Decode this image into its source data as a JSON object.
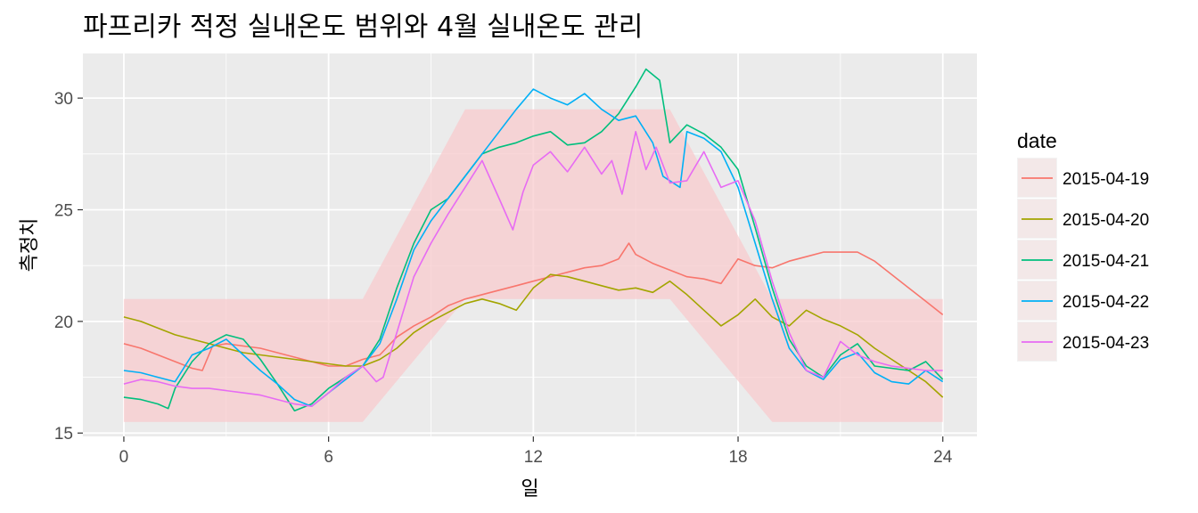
{
  "chart_data": {
    "type": "line",
    "title": "파프리카 적정 실내온도 범위와 4월 실내온도 관리",
    "xlabel": "일",
    "ylabel": "측정치",
    "xlim": [
      -1.2,
      25
    ],
    "ylim": [
      14.85,
      32
    ],
    "x_ticks": [
      0,
      6,
      12,
      18,
      24
    ],
    "y_ticks": [
      15,
      20,
      25,
      30
    ],
    "grid": true,
    "legend": {
      "title": "date",
      "position": "right"
    },
    "band": {
      "color": "#F8CBCD",
      "x": [
        0,
        7,
        10,
        16,
        19,
        24
      ],
      "upper": [
        21,
        21,
        29.5,
        29.5,
        21,
        21
      ],
      "lower": [
        15.5,
        15.5,
        21,
        21,
        15.5,
        15.5
      ]
    },
    "series": [
      {
        "name": "2015-04-19",
        "color": "#F8766D",
        "x": [
          0,
          0.5,
          1,
          1.5,
          2,
          2.3,
          2.6,
          3,
          3.5,
          4,
          4.5,
          5,
          5.5,
          6,
          6.5,
          7,
          7.5,
          8,
          8.5,
          9,
          9.5,
          10,
          10.5,
          11,
          11.5,
          12,
          12.5,
          13,
          13.5,
          14,
          14.5,
          14.8,
          15,
          15.5,
          16,
          16.5,
          17,
          17.5,
          18,
          18.5,
          19,
          19.5,
          20,
          20.5,
          21,
          21.5,
          22,
          22.5,
          23,
          23.5,
          24
        ],
        "values": [
          19.0,
          18.8,
          18.5,
          18.2,
          17.9,
          17.8,
          18.9,
          19.0,
          18.9,
          18.8,
          18.6,
          18.4,
          18.2,
          18.0,
          18.0,
          18.3,
          18.5,
          19.3,
          19.8,
          20.2,
          20.7,
          21.0,
          21.2,
          21.4,
          21.6,
          21.8,
          22.0,
          22.2,
          22.4,
          22.5,
          22.8,
          23.5,
          23.0,
          22.6,
          22.3,
          22.0,
          21.9,
          21.7,
          22.8,
          22.5,
          22.4,
          22.7,
          22.9,
          23.1,
          23.1,
          23.1,
          22.7,
          22.1,
          21.5,
          20.9,
          20.3
        ]
      },
      {
        "name": "2015-04-20",
        "color": "#A3A500",
        "x": [
          0,
          0.5,
          1,
          1.5,
          2,
          2.5,
          3,
          3.5,
          4,
          4.5,
          5,
          5.5,
          6,
          6.5,
          7,
          7.5,
          8,
          8.5,
          9,
          9.5,
          10,
          10.5,
          11,
          11.5,
          12,
          12.5,
          13,
          13.5,
          14,
          14.5,
          15,
          15.5,
          16,
          16.5,
          17,
          17.5,
          18,
          18.5,
          19,
          19.5,
          20,
          20.5,
          21,
          21.5,
          22,
          22.5,
          23,
          23.5,
          24
        ],
        "values": [
          20.2,
          20.0,
          19.7,
          19.4,
          19.2,
          19.0,
          18.8,
          18.6,
          18.5,
          18.4,
          18.3,
          18.2,
          18.1,
          18.0,
          18.0,
          18.3,
          18.8,
          19.5,
          20.0,
          20.4,
          20.8,
          21.0,
          20.8,
          20.5,
          21.5,
          22.1,
          22.0,
          21.8,
          21.6,
          21.4,
          21.5,
          21.3,
          21.8,
          21.2,
          20.5,
          19.8,
          20.3,
          21.0,
          20.2,
          19.8,
          20.5,
          20.1,
          19.8,
          19.4,
          18.8,
          18.3,
          17.8,
          17.3,
          16.6
        ]
      },
      {
        "name": "2015-04-21",
        "color": "#00BF7D",
        "x": [
          0,
          0.5,
          1,
          1.3,
          1.5,
          2,
          2.5,
          3,
          3.5,
          4,
          4.5,
          5,
          5.5,
          6,
          6.5,
          7,
          7.5,
          8,
          8.5,
          9,
          9.5,
          10,
          10.5,
          11,
          11.5,
          12,
          12.5,
          13,
          13.5,
          14,
          14.5,
          15,
          15.3,
          15.7,
          16,
          16.5,
          17,
          17.5,
          18,
          18.5,
          19,
          19.5,
          20,
          20.5,
          21,
          21.5,
          22,
          22.5,
          23,
          23.5,
          24
        ],
        "values": [
          16.6,
          16.5,
          16.3,
          16.1,
          17.0,
          18.2,
          19.0,
          19.4,
          19.2,
          18.3,
          17.2,
          16.0,
          16.3,
          17.0,
          17.5,
          18.0,
          19.2,
          21.5,
          23.5,
          25.0,
          25.5,
          26.5,
          27.5,
          27.8,
          28.0,
          28.3,
          28.5,
          27.9,
          28.0,
          28.5,
          29.3,
          30.5,
          31.3,
          30.8,
          28.0,
          28.8,
          28.4,
          27.8,
          26.8,
          24.2,
          21.5,
          19.2,
          18.0,
          17.5,
          18.5,
          19.0,
          18.0,
          17.9,
          17.8,
          18.2,
          17.4
        ]
      },
      {
        "name": "2015-04-22",
        "color": "#00B0F6",
        "x": [
          0,
          0.5,
          1,
          1.5,
          2,
          2.5,
          3,
          3.5,
          4,
          4.5,
          5,
          5.5,
          6,
          6.5,
          7,
          7.5,
          8,
          8.5,
          9,
          9.5,
          10,
          10.5,
          11,
          11.5,
          12,
          12.5,
          13,
          13.5,
          14,
          14.5,
          15,
          15.5,
          15.8,
          16.3,
          16.5,
          17,
          17.5,
          18,
          18.5,
          19,
          19.5,
          20,
          20.5,
          21,
          21.5,
          22,
          22.5,
          23,
          23.5,
          24
        ],
        "values": [
          17.8,
          17.7,
          17.5,
          17.3,
          18.5,
          18.8,
          19.2,
          18.5,
          17.8,
          17.2,
          16.5,
          16.2,
          16.8,
          17.4,
          18.0,
          19.0,
          21.0,
          23.2,
          24.5,
          25.5,
          26.5,
          27.5,
          28.5,
          29.5,
          30.4,
          30.0,
          29.7,
          30.2,
          29.5,
          29.0,
          29.2,
          28.0,
          26.5,
          26.0,
          28.5,
          28.2,
          27.6,
          26.0,
          23.5,
          21.0,
          18.8,
          17.8,
          17.4,
          18.3,
          18.6,
          17.7,
          17.3,
          17.2,
          17.8,
          17.3
        ]
      },
      {
        "name": "2015-04-23",
        "color": "#E76BF3",
        "x": [
          0,
          0.5,
          1,
          1.5,
          2,
          2.5,
          3,
          3.5,
          4,
          4.5,
          5,
          5.5,
          6,
          6.5,
          7,
          7.4,
          7.6,
          8,
          8.5,
          9,
          9.5,
          10,
          10.5,
          11,
          11.4,
          11.7,
          12,
          12.5,
          13,
          13.5,
          14,
          14.3,
          14.6,
          15,
          15.3,
          15.6,
          16,
          16.5,
          17,
          17.5,
          18,
          18.5,
          19,
          19.5,
          20,
          20.5,
          21,
          21.5,
          22,
          22.5,
          23,
          23.5,
          24
        ],
        "values": [
          17.2,
          17.4,
          17.3,
          17.1,
          17.0,
          17.0,
          16.9,
          16.8,
          16.7,
          16.5,
          16.3,
          16.2,
          16.8,
          17.5,
          18.0,
          17.3,
          17.5,
          19.5,
          22.0,
          23.5,
          24.8,
          26.0,
          27.2,
          25.5,
          24.1,
          25.8,
          27.0,
          27.6,
          26.7,
          27.8,
          26.6,
          27.2,
          25.7,
          28.5,
          26.8,
          27.8,
          26.2,
          26.3,
          27.6,
          26.0,
          26.3,
          24.5,
          21.8,
          19.5,
          17.8,
          17.5,
          19.1,
          18.5,
          18.2,
          18.0,
          17.9,
          17.8,
          17.8
        ]
      }
    ]
  }
}
